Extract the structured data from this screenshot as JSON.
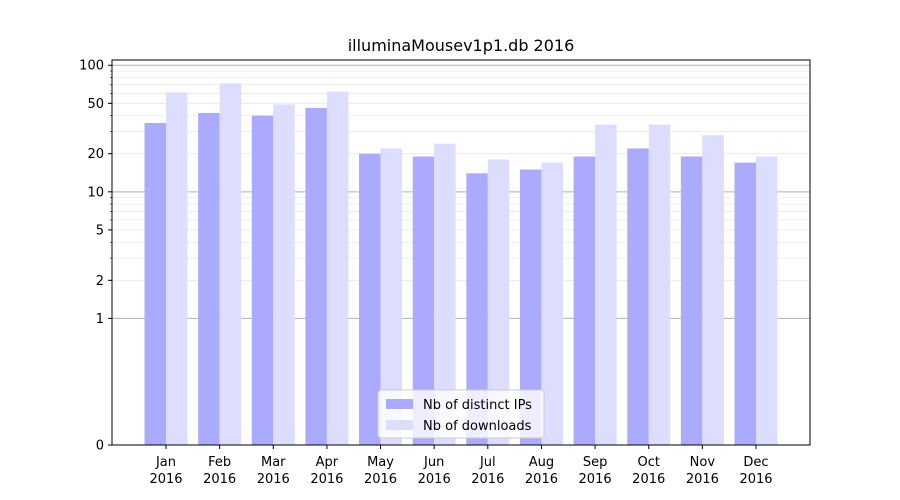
{
  "chart_data": {
    "type": "bar",
    "title": "illuminaMousev1p1.db 2016",
    "xlabel": "",
    "ylabel": "",
    "y_scale": "symlog",
    "ylim": [
      0,
      110
    ],
    "y_ticks": [
      0,
      1,
      2,
      5,
      10,
      20,
      50,
      100
    ],
    "y_tick_labels": [
      "0",
      "1",
      "2",
      "5",
      "10",
      "20",
      "50",
      "100"
    ],
    "grid": true,
    "legend_position": "bottom-center",
    "categories": [
      {
        "month": "Jan",
        "year": "2016"
      },
      {
        "month": "Feb",
        "year": "2016"
      },
      {
        "month": "Mar",
        "year": "2016"
      },
      {
        "month": "Apr",
        "year": "2016"
      },
      {
        "month": "May",
        "year": "2016"
      },
      {
        "month": "Jun",
        "year": "2016"
      },
      {
        "month": "Jul",
        "year": "2016"
      },
      {
        "month": "Aug",
        "year": "2016"
      },
      {
        "month": "Sep",
        "year": "2016"
      },
      {
        "month": "Oct",
        "year": "2016"
      },
      {
        "month": "Nov",
        "year": "2016"
      },
      {
        "month": "Dec",
        "year": "2016"
      }
    ],
    "series": [
      {
        "name": "Nb of distinct IPs",
        "color": "#aaaaff",
        "values": [
          35,
          42,
          40,
          46,
          20,
          19,
          14,
          15,
          19,
          22,
          19,
          17
        ]
      },
      {
        "name": "Nb of downloads",
        "color": "#ddddff",
        "values": [
          61,
          72,
          49,
          62,
          22,
          24,
          18,
          17,
          34,
          34,
          28,
          19
        ]
      }
    ]
  }
}
